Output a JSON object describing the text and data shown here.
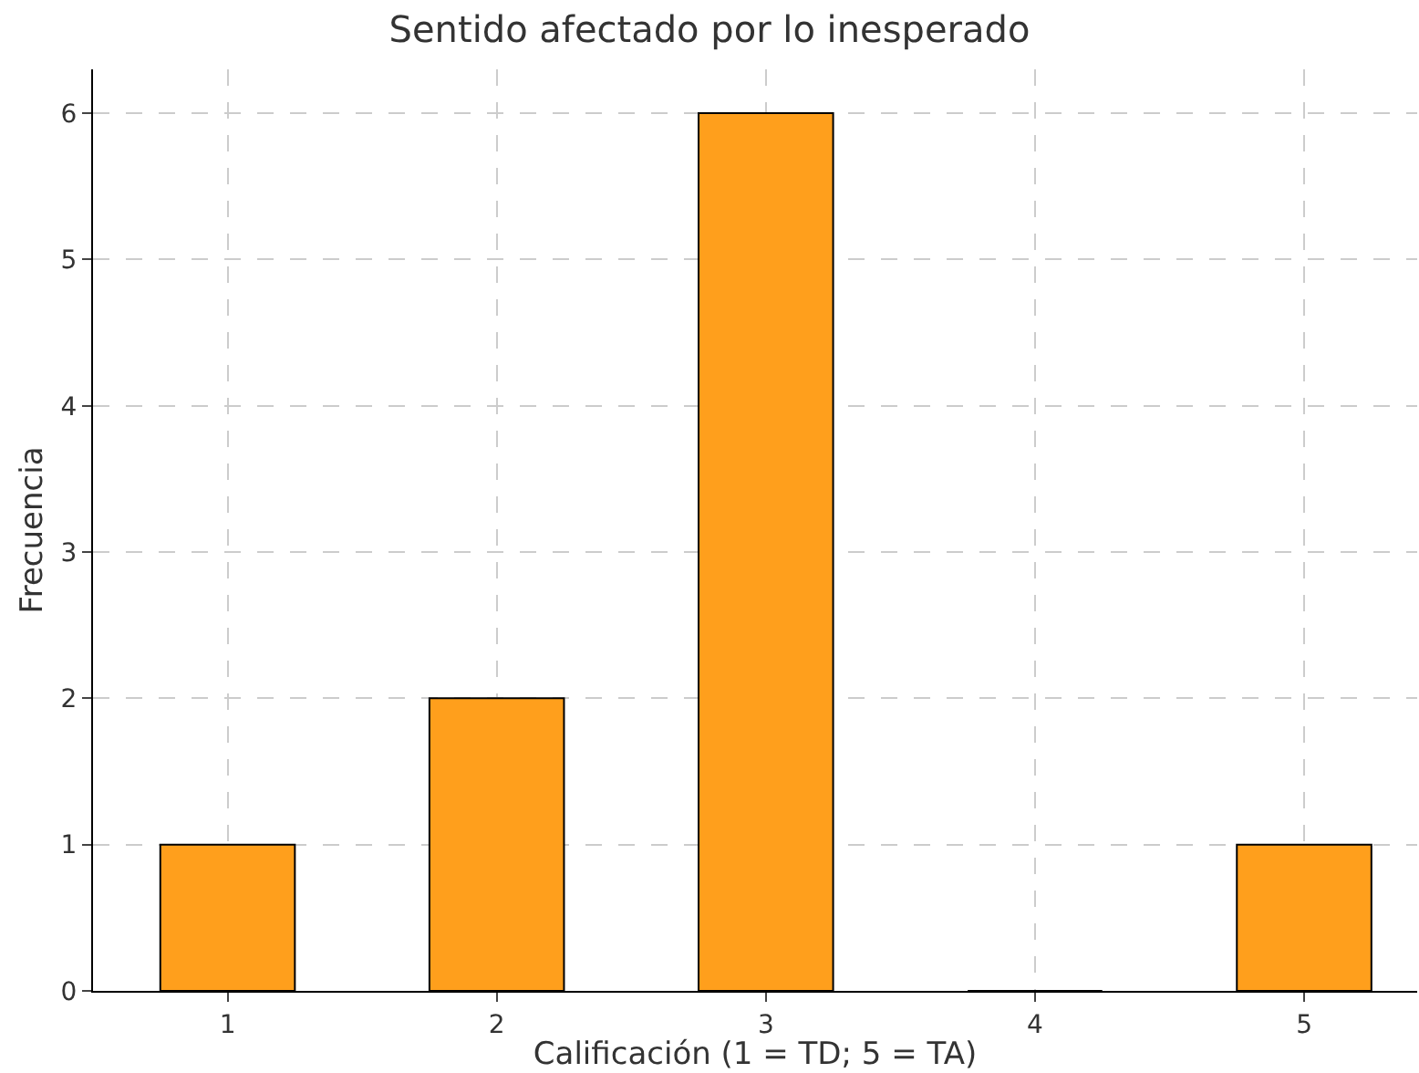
{
  "chart_data": {
    "type": "bar",
    "title": "Sentido afectado por lo inesperado",
    "xlabel": "Calificación (1 = TD; 5 = TA)",
    "ylabel": "Frecuencia",
    "x": [
      1,
      2,
      3,
      4,
      5
    ],
    "values": [
      1,
      2,
      6,
      0,
      1
    ],
    "color": "#ff9f1c",
    "xlim": [
      0.5,
      5.42
    ],
    "xticks": [
      1,
      2,
      3,
      4,
      5
    ],
    "ylim": [
      0,
      6.3
    ],
    "yticks": [
      0,
      1,
      2,
      3,
      4,
      5,
      6
    ],
    "grid": true
  }
}
